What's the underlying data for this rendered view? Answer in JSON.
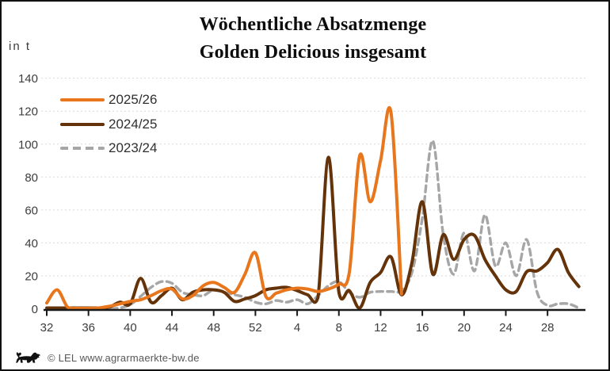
{
  "title": {
    "line1": "Wöchentliche Absatzmenge",
    "line2": "Golden Delicious insgesamt"
  },
  "y_axis": {
    "unit_label": "in t",
    "ticks": [
      0,
      20,
      40,
      60,
      80,
      100,
      120,
      140
    ],
    "max": 140
  },
  "x_axis": {
    "tick_labels": [
      "32",
      "36",
      "40",
      "44",
      "48",
      "52",
      "4",
      "8",
      "12",
      "16",
      "20",
      "24",
      "28"
    ]
  },
  "footer": {
    "copyright": "© LEL www.agrarmaerkte-bw.de",
    "logo": "baden-wuerttemberg-lion"
  },
  "colors": {
    "series_2025_26": "#E8761D",
    "series_2024_25": "#643309",
    "series_2023_24": "#A6A6A6",
    "gridline": "#D9D9D9",
    "axis": "#1a1a1a"
  },
  "chart_data": {
    "type": "line",
    "title": "Wöchentliche Absatzmenge Golden Delicious insgesamt",
    "ylabel": "in t",
    "ylim": [
      0,
      140
    ],
    "grid": "horizontal-dashed",
    "legend_position": "top-left",
    "x_weeks": [
      32,
      33,
      34,
      35,
      36,
      37,
      38,
      39,
      40,
      41,
      42,
      43,
      44,
      45,
      46,
      47,
      48,
      49,
      50,
      51,
      52,
      1,
      2,
      3,
      4,
      5,
      6,
      7,
      8,
      9,
      10,
      11,
      12,
      13,
      14,
      15,
      16,
      17,
      18,
      19,
      20,
      21,
      22,
      23,
      24,
      25,
      26,
      27,
      28,
      29,
      30,
      31
    ],
    "series": [
      {
        "name": "2025/26",
        "color": "#E8761D",
        "style": "solid",
        "values": [
          3.5,
          11.5,
          1,
          0.3,
          0.3,
          0.5,
          1.5,
          3,
          4.5,
          5.5,
          8,
          11,
          12,
          6,
          8,
          14,
          16,
          13,
          10,
          21,
          34,
          7.5,
          9.5,
          11.5,
          12.5,
          12,
          10.5,
          12,
          15,
          22,
          93,
          65,
          90,
          119,
          9,
          null,
          null,
          null,
          null,
          null,
          null,
          null,
          null,
          null,
          null,
          null,
          null,
          null,
          null,
          null,
          null,
          null
        ]
      },
      {
        "name": "2024/25",
        "color": "#643309",
        "style": "solid",
        "values": [
          0.5,
          0.5,
          0.5,
          0.5,
          0.5,
          0.5,
          1,
          4,
          3,
          18.5,
          4,
          8,
          12.5,
          5.5,
          10,
          11.5,
          11.5,
          10,
          4.5,
          6,
          8,
          11.5,
          12.5,
          13,
          11,
          8.5,
          7,
          92,
          10,
          11,
          0.5,
          16,
          22,
          31.5,
          8.5,
          28,
          65,
          21,
          45,
          30,
          42,
          44.5,
          30,
          20,
          11.5,
          10.5,
          22.5,
          23,
          28,
          36,
          22,
          13.5
        ]
      },
      {
        "name": "2023/24",
        "color": "#A6A6A6",
        "style": "dashed",
        "values": [
          0.3,
          0.3,
          0.3,
          0.3,
          0.3,
          0.3,
          0.3,
          0.5,
          2.5,
          7.5,
          13,
          16.5,
          15.5,
          10,
          8.5,
          8,
          11.5,
          10,
          8.5,
          7,
          4,
          3,
          5,
          4,
          5.5,
          3,
          8,
          14,
          16.5,
          10,
          7,
          10,
          10.5,
          10.5,
          11,
          22,
          55,
          102,
          45,
          21,
          46,
          23,
          57,
          26,
          40,
          20,
          42,
          10,
          2,
          3,
          3,
          0.5
        ]
      }
    ]
  }
}
